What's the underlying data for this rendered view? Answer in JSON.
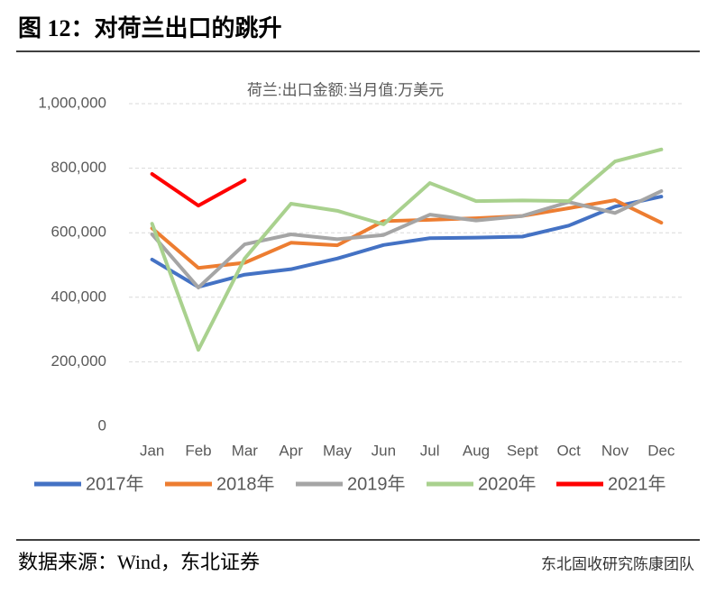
{
  "figure_title": "图 12：对荷兰出口的跳升",
  "source": "数据来源：Wind，东北证券",
  "watermark": "东北固收研究陈康团队",
  "chart_data": {
    "type": "line",
    "title": "荷兰:出口金额:当月值:万美元",
    "categories": [
      "Jan",
      "Feb",
      "Mar",
      "Apr",
      "May",
      "Jun",
      "Jul",
      "Aug",
      "Sept",
      "Oct",
      "Nov",
      "Dec"
    ],
    "series": [
      {
        "name": "2017年",
        "color": "#4472c4",
        "values": [
          517000,
          432000,
          470000,
          487000,
          520000,
          562000,
          583000,
          585000,
          588000,
          622000,
          681000,
          712000
        ]
      },
      {
        "name": "2018年",
        "color": "#ed7d31",
        "values": [
          614000,
          491000,
          507000,
          569000,
          561000,
          636000,
          640000,
          645000,
          652000,
          676000,
          701000,
          631000
        ]
      },
      {
        "name": "2019年",
        "color": "#a5a5a5",
        "values": [
          595000,
          430000,
          564000,
          595000,
          580000,
          593000,
          656000,
          638000,
          652000,
          695000,
          661000,
          729000
        ]
      },
      {
        "name": "2020年",
        "color": "#a9d18e",
        "values": [
          628000,
          237000,
          520000,
          690000,
          668000,
          626000,
          754000,
          698000,
          700000,
          698000,
          821000,
          858000
        ]
      },
      {
        "name": "2021年",
        "color": "#ff0000",
        "values": [
          782000,
          684000,
          763000,
          null,
          null,
          null,
          null,
          null,
          null,
          null,
          null,
          null
        ]
      }
    ],
    "ylim": [
      0,
      1000000
    ],
    "yticks": [
      0,
      {
        "value": 200000,
        "label": "200,000"
      },
      {
        "value": 400000,
        "label": "400,000"
      },
      {
        "value": 600000,
        "label": "600,000"
      },
      {
        "value": 800000,
        "label": "800,000"
      },
      {
        "value": 1000000,
        "label": "1,000,000"
      }
    ],
    "grid": true
  }
}
